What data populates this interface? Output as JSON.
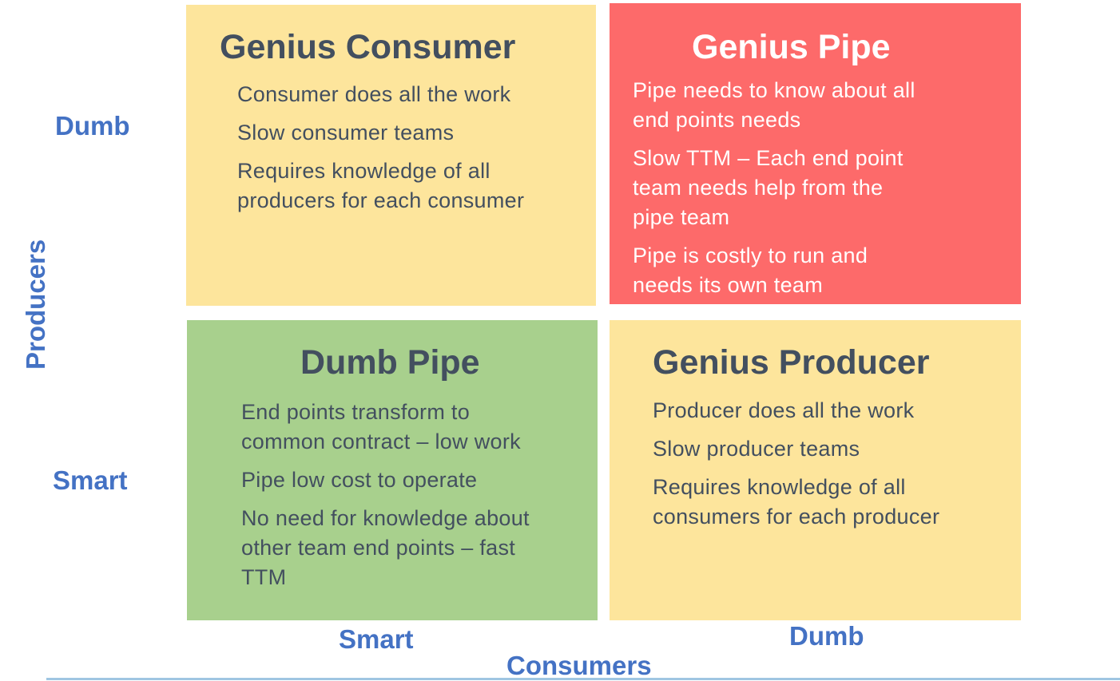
{
  "axes": {
    "y_title": "Producers",
    "y_ticks": {
      "top": "Dumb",
      "bottom": "Smart"
    },
    "x_title": "Consumers",
    "x_ticks": {
      "left": "Smart",
      "right": "Dumb"
    }
  },
  "quadrants": {
    "top_left": {
      "title": "Genius Consumer",
      "color": "#fde59c",
      "bullets": [
        "Consumer does all the work",
        "Slow consumer teams",
        "Requires knowledge of all\nproducers for each consumer"
      ]
    },
    "top_right": {
      "title": "Genius Pipe",
      "color": "#fd6a6a",
      "bullets": [
        "Pipe needs to know about all\nend points needs",
        "Slow TTM – Each end point\nteam needs help from the\npipe team",
        "Pipe is costly to run and\nneeds its own team"
      ]
    },
    "bottom_left": {
      "title": "Dumb Pipe",
      "color": "#a8d08d",
      "bullets": [
        "End points transform to\ncommon contract – low work",
        "Pipe low cost to operate",
        "No need for knowledge about\nother team end points – fast\nTTM"
      ]
    },
    "bottom_right": {
      "title": "Genius Producer",
      "color": "#fde59c",
      "bullets": [
        "Producer does all the work",
        "Slow producer teams",
        "Requires knowledge of all\nconsumers for each producer"
      ]
    }
  },
  "colors": {
    "axis_text": "#4472c4",
    "body_text": "#434f5f"
  }
}
